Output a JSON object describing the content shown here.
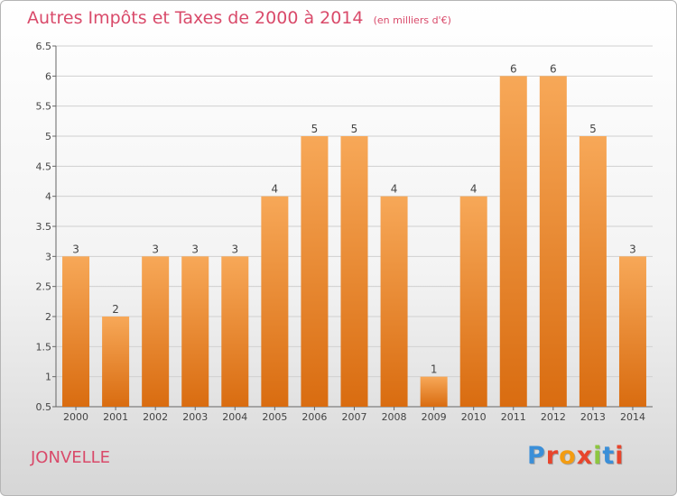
{
  "header": {
    "title": "Autres Impôts et Taxes de 2000 à 2014",
    "unit": "(en milliers d'€)"
  },
  "footer": {
    "town": "JONVELLE",
    "brand": "Proxiti",
    "brand_colors": [
      "#3b8fd8",
      "#e8452c",
      "#f39c12",
      "#e8452c",
      "#8dc63f",
      "#3b8fd8",
      "#e8452c"
    ]
  },
  "colors": {
    "title": "#d94a6a",
    "bar_top": "#f7a858",
    "bar_bottom": "#d96c10",
    "grid": "#d0d0d0",
    "axis": "#666666"
  },
  "chart_data": {
    "type": "bar",
    "categories": [
      "2000",
      "2001",
      "2002",
      "2003",
      "2004",
      "2005",
      "2006",
      "2007",
      "2008",
      "2009",
      "2010",
      "2011",
      "2012",
      "2013",
      "2014"
    ],
    "values": [
      3,
      2,
      3,
      3,
      3,
      4,
      5,
      5,
      4,
      1,
      4,
      6,
      6,
      5,
      3
    ],
    "data_labels": [
      "3",
      "2",
      "3",
      "3",
      "3",
      "4",
      "5",
      "5",
      "4",
      "1",
      "4",
      "6",
      "6",
      "5",
      "3"
    ],
    "title": "Autres Impôts et Taxes de 2000 à 2014",
    "subtitle": "(en milliers d'€)",
    "xlabel": "",
    "ylabel": "",
    "ylim": [
      0.5,
      6.5
    ],
    "yticks": [
      "0.5",
      "1",
      "1.5",
      "2",
      "2.5",
      "3",
      "3.5",
      "4",
      "4.5",
      "5",
      "5.5",
      "6",
      "6.5"
    ],
    "grid": true,
    "legend": "none"
  }
}
